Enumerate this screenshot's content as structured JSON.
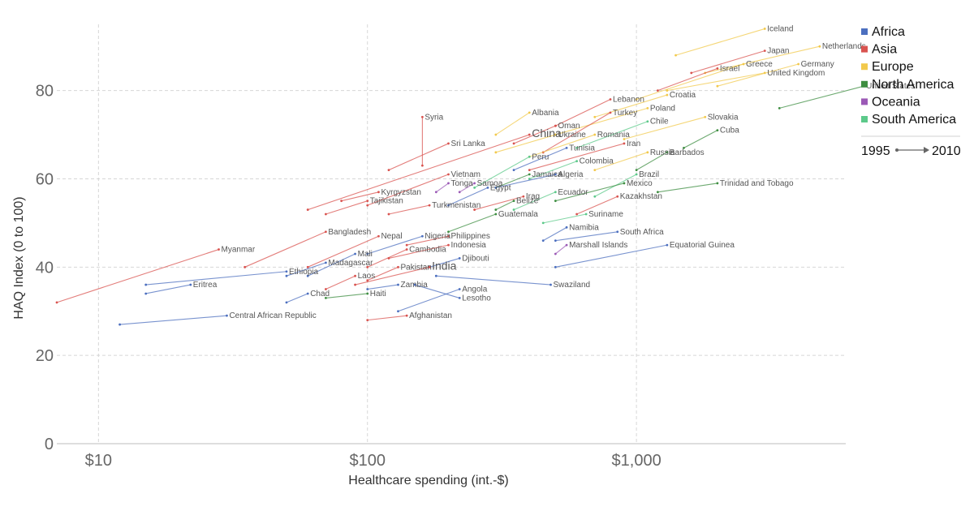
{
  "chart_data": {
    "type": "scatter",
    "subtype": "connected-arrows",
    "xlabel": "Healthcare spending (int.-$)",
    "ylabel": "HAQ Index (0 to 100)",
    "x_scale": "log",
    "xlim": [
      7,
      6000
    ],
    "ylim": [
      0,
      95
    ],
    "x_ticks": [
      10,
      100,
      1000
    ],
    "x_tick_labels": [
      "$10",
      "$100",
      "$1,000"
    ],
    "y_ticks": [
      0,
      20,
      40,
      60,
      80
    ],
    "y_tick_labels": [
      "0",
      "20",
      "40",
      "60",
      "80"
    ],
    "grid": true,
    "legend_position": "right",
    "legend": [
      {
        "name": "Africa",
        "color": "#4c6fbf"
      },
      {
        "name": "Asia",
        "color": "#d9534f"
      },
      {
        "name": "Europe",
        "color": "#f2c94c"
      },
      {
        "name": "North America",
        "color": "#3e8e41"
      },
      {
        "name": "Oceania",
        "color": "#9b59b6"
      },
      {
        "name": "South America",
        "color": "#5cc98a"
      }
    ],
    "time_legend": {
      "start": "1995",
      "end": "2010"
    },
    "series": [
      {
        "name": "Iceland",
        "region": "Europe",
        "x0": 1400,
        "y0": 88,
        "x1": 3000,
        "y1": 94
      },
      {
        "name": "Netherlands",
        "region": "Europe",
        "x0": 1800,
        "y0": 84,
        "x1": 4800,
        "y1": 90
      },
      {
        "name": "Japan",
        "region": "Asia",
        "x0": 1600,
        "y0": 84,
        "x1": 3000,
        "y1": 89
      },
      {
        "name": "Germany",
        "region": "Europe",
        "x0": 2000,
        "y0": 81,
        "x1": 4000,
        "y1": 86
      },
      {
        "name": "Greece",
        "region": "Europe",
        "x0": 1000,
        "y0": 78,
        "x1": 2500,
        "y1": 86
      },
      {
        "name": "Israel",
        "region": "Asia",
        "x0": 1200,
        "y0": 80,
        "x1": 2000,
        "y1": 85
      },
      {
        "name": "United Kingdom",
        "region": "Europe",
        "x0": 1300,
        "y0": 80,
        "x1": 3000,
        "y1": 84
      },
      {
        "name": "United States",
        "region": "North America",
        "x0": 3400,
        "y0": 76,
        "x1": 7000,
        "y1": 81
      },
      {
        "name": "Croatia",
        "region": "Europe",
        "x0": 700,
        "y0": 74,
        "x1": 1300,
        "y1": 79
      },
      {
        "name": "Poland",
        "region": "Europe",
        "x0": 500,
        "y0": 70,
        "x1": 1100,
        "y1": 76
      },
      {
        "name": "Lebanon",
        "region": "Asia",
        "x0": 500,
        "y0": 72,
        "x1": 800,
        "y1": 78
      },
      {
        "name": "Albania",
        "region": "Europe",
        "x0": 300,
        "y0": 70,
        "x1": 400,
        "y1": 75
      },
      {
        "name": "Syria",
        "region": "Asia",
        "x0": 160,
        "y0": 63,
        "x1": 160,
        "y1": 74
      },
      {
        "name": "Turkey",
        "region": "Asia",
        "x0": 450,
        "y0": 66,
        "x1": 800,
        "y1": 75
      },
      {
        "name": "Chile",
        "region": "South America",
        "x0": 600,
        "y0": 67,
        "x1": 1100,
        "y1": 73
      },
      {
        "name": "Slovakia",
        "region": "Europe",
        "x0": 900,
        "y0": 69,
        "x1": 1800,
        "y1": 74
      },
      {
        "name": "Oman",
        "region": "Asia",
        "x0": 350,
        "y0": 68,
        "x1": 500,
        "y1": 72
      },
      {
        "name": "Ukraine",
        "region": "Europe",
        "x0": 300,
        "y0": 66,
        "x1": 500,
        "y1": 70
      },
      {
        "name": "China",
        "region": "Asia",
        "x0": 60,
        "y0": 53,
        "x1": 400,
        "y1": 70
      },
      {
        "name": "Sri Lanka",
        "region": "Asia",
        "x0": 120,
        "y0": 62,
        "x1": 200,
        "y1": 68
      },
      {
        "name": "Romania",
        "region": "Europe",
        "x0": 400,
        "y0": 65,
        "x1": 700,
        "y1": 70
      },
      {
        "name": "Cuba",
        "region": "North America",
        "x0": 1500,
        "y0": 67,
        "x1": 2000,
        "y1": 71
      },
      {
        "name": "Iran",
        "region": "Asia",
        "x0": 400,
        "y0": 62,
        "x1": 900,
        "y1": 68
      },
      {
        "name": "Russia",
        "region": "Europe",
        "x0": 700,
        "y0": 62,
        "x1": 1100,
        "y1": 66
      },
      {
        "name": "Tunisia",
        "region": "Africa",
        "x0": 350,
        "y0": 62,
        "x1": 550,
        "y1": 67
      },
      {
        "name": "Peru",
        "region": "South America",
        "x0": 250,
        "y0": 58,
        "x1": 400,
        "y1": 65
      },
      {
        "name": "Colombia",
        "region": "South America",
        "x0": 400,
        "y0": 60,
        "x1": 600,
        "y1": 64
      },
      {
        "name": "Barbados",
        "region": "North America",
        "x0": 1000,
        "y0": 62,
        "x1": 1300,
        "y1": 66
      },
      {
        "name": "Vietnam",
        "region": "Asia",
        "x0": 100,
        "y0": 54,
        "x1": 200,
        "y1": 61
      },
      {
        "name": "Jamaica",
        "region": "North America",
        "x0": 300,
        "y0": 58,
        "x1": 400,
        "y1": 61
      },
      {
        "name": "Algeria",
        "region": "Africa",
        "x0": 300,
        "y0": 58,
        "x1": 500,
        "y1": 61
      },
      {
        "name": "Brazil",
        "region": "South America",
        "x0": 700,
        "y0": 56,
        "x1": 1000,
        "y1": 61
      },
      {
        "name": "Tonga",
        "region": "Oceania",
        "x0": 180,
        "y0": 57,
        "x1": 200,
        "y1": 59
      },
      {
        "name": "Samoa",
        "region": "Oceania",
        "x0": 220,
        "y0": 57,
        "x1": 250,
        "y1": 59
      },
      {
        "name": "Egypt",
        "region": "Africa",
        "x0": 200,
        "y0": 54,
        "x1": 280,
        "y1": 58
      },
      {
        "name": "Mexico",
        "region": "North America",
        "x0": 500,
        "y0": 55,
        "x1": 900,
        "y1": 59
      },
      {
        "name": "Trinidad and Tobago",
        "region": "North America",
        "x0": 1200,
        "y0": 57,
        "x1": 2000,
        "y1": 59
      },
      {
        "name": "Ecuador",
        "region": "South America",
        "x0": 350,
        "y0": 53,
        "x1": 500,
        "y1": 57
      },
      {
        "name": "Kyrgyzstan",
        "region": "Asia",
        "x0": 80,
        "y0": 55,
        "x1": 110,
        "y1": 57
      },
      {
        "name": "Kazakhstan",
        "region": "Asia",
        "x0": 600,
        "y0": 52,
        "x1": 850,
        "y1": 56
      },
      {
        "name": "Iraq",
        "region": "Asia",
        "x0": 250,
        "y0": 53,
        "x1": 380,
        "y1": 56
      },
      {
        "name": "Belize",
        "region": "North America",
        "x0": 300,
        "y0": 53,
        "x1": 350,
        "y1": 55
      },
      {
        "name": "Tajikistan",
        "region": "Asia",
        "x0": 70,
        "y0": 52,
        "x1": 100,
        "y1": 55
      },
      {
        "name": "Turkmenistan",
        "region": "Asia",
        "x0": 120,
        "y0": 52,
        "x1": 170,
        "y1": 54
      },
      {
        "name": "Guatemala",
        "region": "North America",
        "x0": 200,
        "y0": 48,
        "x1": 300,
        "y1": 52
      },
      {
        "name": "Suriname",
        "region": "South America",
        "x0": 450,
        "y0": 50,
        "x1": 650,
        "y1": 52
      },
      {
        "name": "Namibia",
        "region": "Africa",
        "x0": 450,
        "y0": 46,
        "x1": 550,
        "y1": 49
      },
      {
        "name": "South Africa",
        "region": "Africa",
        "x0": 500,
        "y0": 46,
        "x1": 850,
        "y1": 48
      },
      {
        "name": "Bangladesh",
        "region": "Asia",
        "x0": 35,
        "y0": 40,
        "x1": 70,
        "y1": 48
      },
      {
        "name": "Nepal",
        "region": "Asia",
        "x0": 60,
        "y0": 40,
        "x1": 110,
        "y1": 47
      },
      {
        "name": "Nigeria",
        "region": "Africa",
        "x0": 100,
        "y0": 43,
        "x1": 160,
        "y1": 47
      },
      {
        "name": "Philippines",
        "region": "Asia",
        "x0": 140,
        "y0": 45,
        "x1": 200,
        "y1": 47
      },
      {
        "name": "Indonesia",
        "region": "Asia",
        "x0": 120,
        "y0": 42,
        "x1": 200,
        "y1": 45
      },
      {
        "name": "Marshall Islands",
        "region": "Oceania",
        "x0": 500,
        "y0": 43,
        "x1": 550,
        "y1": 45
      },
      {
        "name": "Equatorial Guinea",
        "region": "Africa",
        "x0": 500,
        "y0": 40,
        "x1": 1300,
        "y1": 45
      },
      {
        "name": "Cambodia",
        "region": "Asia",
        "x0": 100,
        "y0": 40,
        "x1": 140,
        "y1": 44
      },
      {
        "name": "Mali",
        "region": "Africa",
        "x0": 60,
        "y0": 38,
        "x1": 90,
        "y1": 43
      },
      {
        "name": "Myanmar",
        "region": "Asia",
        "x0": 7,
        "y0": 32,
        "x1": 28,
        "y1": 44
      },
      {
        "name": "Madagascar",
        "region": "Africa",
        "x0": 50,
        "y0": 38,
        "x1": 70,
        "y1": 41
      },
      {
        "name": "Djibouti",
        "region": "Africa",
        "x0": 170,
        "y0": 40,
        "x1": 220,
        "y1": 42
      },
      {
        "name": "Ethiopia",
        "region": "Africa",
        "x0": 15,
        "y0": 36,
        "x1": 50,
        "y1": 39
      },
      {
        "name": "Pakistan",
        "region": "Asia",
        "x0": 100,
        "y0": 37,
        "x1": 130,
        "y1": 40
      },
      {
        "name": "Laos",
        "region": "Asia",
        "x0": 70,
        "y0": 35,
        "x1": 90,
        "y1": 38
      },
      {
        "name": "India",
        "region": "Asia",
        "x0": 90,
        "y0": 36,
        "x1": 170,
        "y1": 40
      },
      {
        "name": "Eritrea",
        "region": "Africa",
        "x0": 15,
        "y0": 34,
        "x1": 22,
        "y1": 36
      },
      {
        "name": "Angola",
        "region": "Africa",
        "x0": 130,
        "y0": 30,
        "x1": 220,
        "y1": 35
      },
      {
        "name": "Zambia",
        "region": "Africa",
        "x0": 100,
        "y0": 35,
        "x1": 130,
        "y1": 36
      },
      {
        "name": "Chad",
        "region": "Africa",
        "x0": 50,
        "y0": 32,
        "x1": 60,
        "y1": 34
      },
      {
        "name": "Haiti",
        "region": "North America",
        "x0": 70,
        "y0": 33,
        "x1": 100,
        "y1": 34
      },
      {
        "name": "Swaziland",
        "region": "Africa",
        "x0": 180,
        "y0": 38,
        "x1": 480,
        "y1": 36
      },
      {
        "name": "Lesotho",
        "region": "Africa",
        "x0": 150,
        "y0": 36,
        "x1": 220,
        "y1": 33
      },
      {
        "name": "Central African Republic",
        "region": "Africa",
        "x0": 12,
        "y0": 27,
        "x1": 30,
        "y1": 29
      },
      {
        "name": "Afghanistan",
        "region": "Asia",
        "x0": 100,
        "y0": 28,
        "x1": 140,
        "y1": 29
      }
    ],
    "big_labels": [
      "China",
      "India"
    ]
  }
}
